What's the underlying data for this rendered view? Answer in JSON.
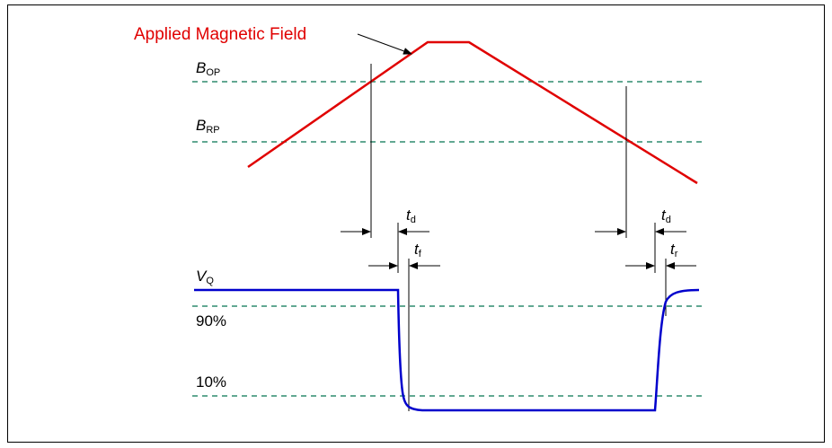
{
  "diagram": {
    "title": "Applied Magnetic Field",
    "b_op": {
      "symbol": "B",
      "subscript": "OP"
    },
    "b_rp": {
      "symbol": "B",
      "subscript": "RP"
    },
    "vq": {
      "symbol": "V",
      "subscript": "Q"
    },
    "level_90": "90%",
    "level_10": "10%",
    "td_left": {
      "symbol": "t",
      "subscript": "d"
    },
    "tf": {
      "symbol": "t",
      "subscript": "f"
    },
    "td_right": {
      "symbol": "t",
      "subscript": "d"
    },
    "tr": {
      "symbol": "t",
      "subscript": "r"
    }
  },
  "colors": {
    "field": "#e00000",
    "output": "#0000cc",
    "threshold": "#2e8b6e",
    "frame": "#000000"
  }
}
